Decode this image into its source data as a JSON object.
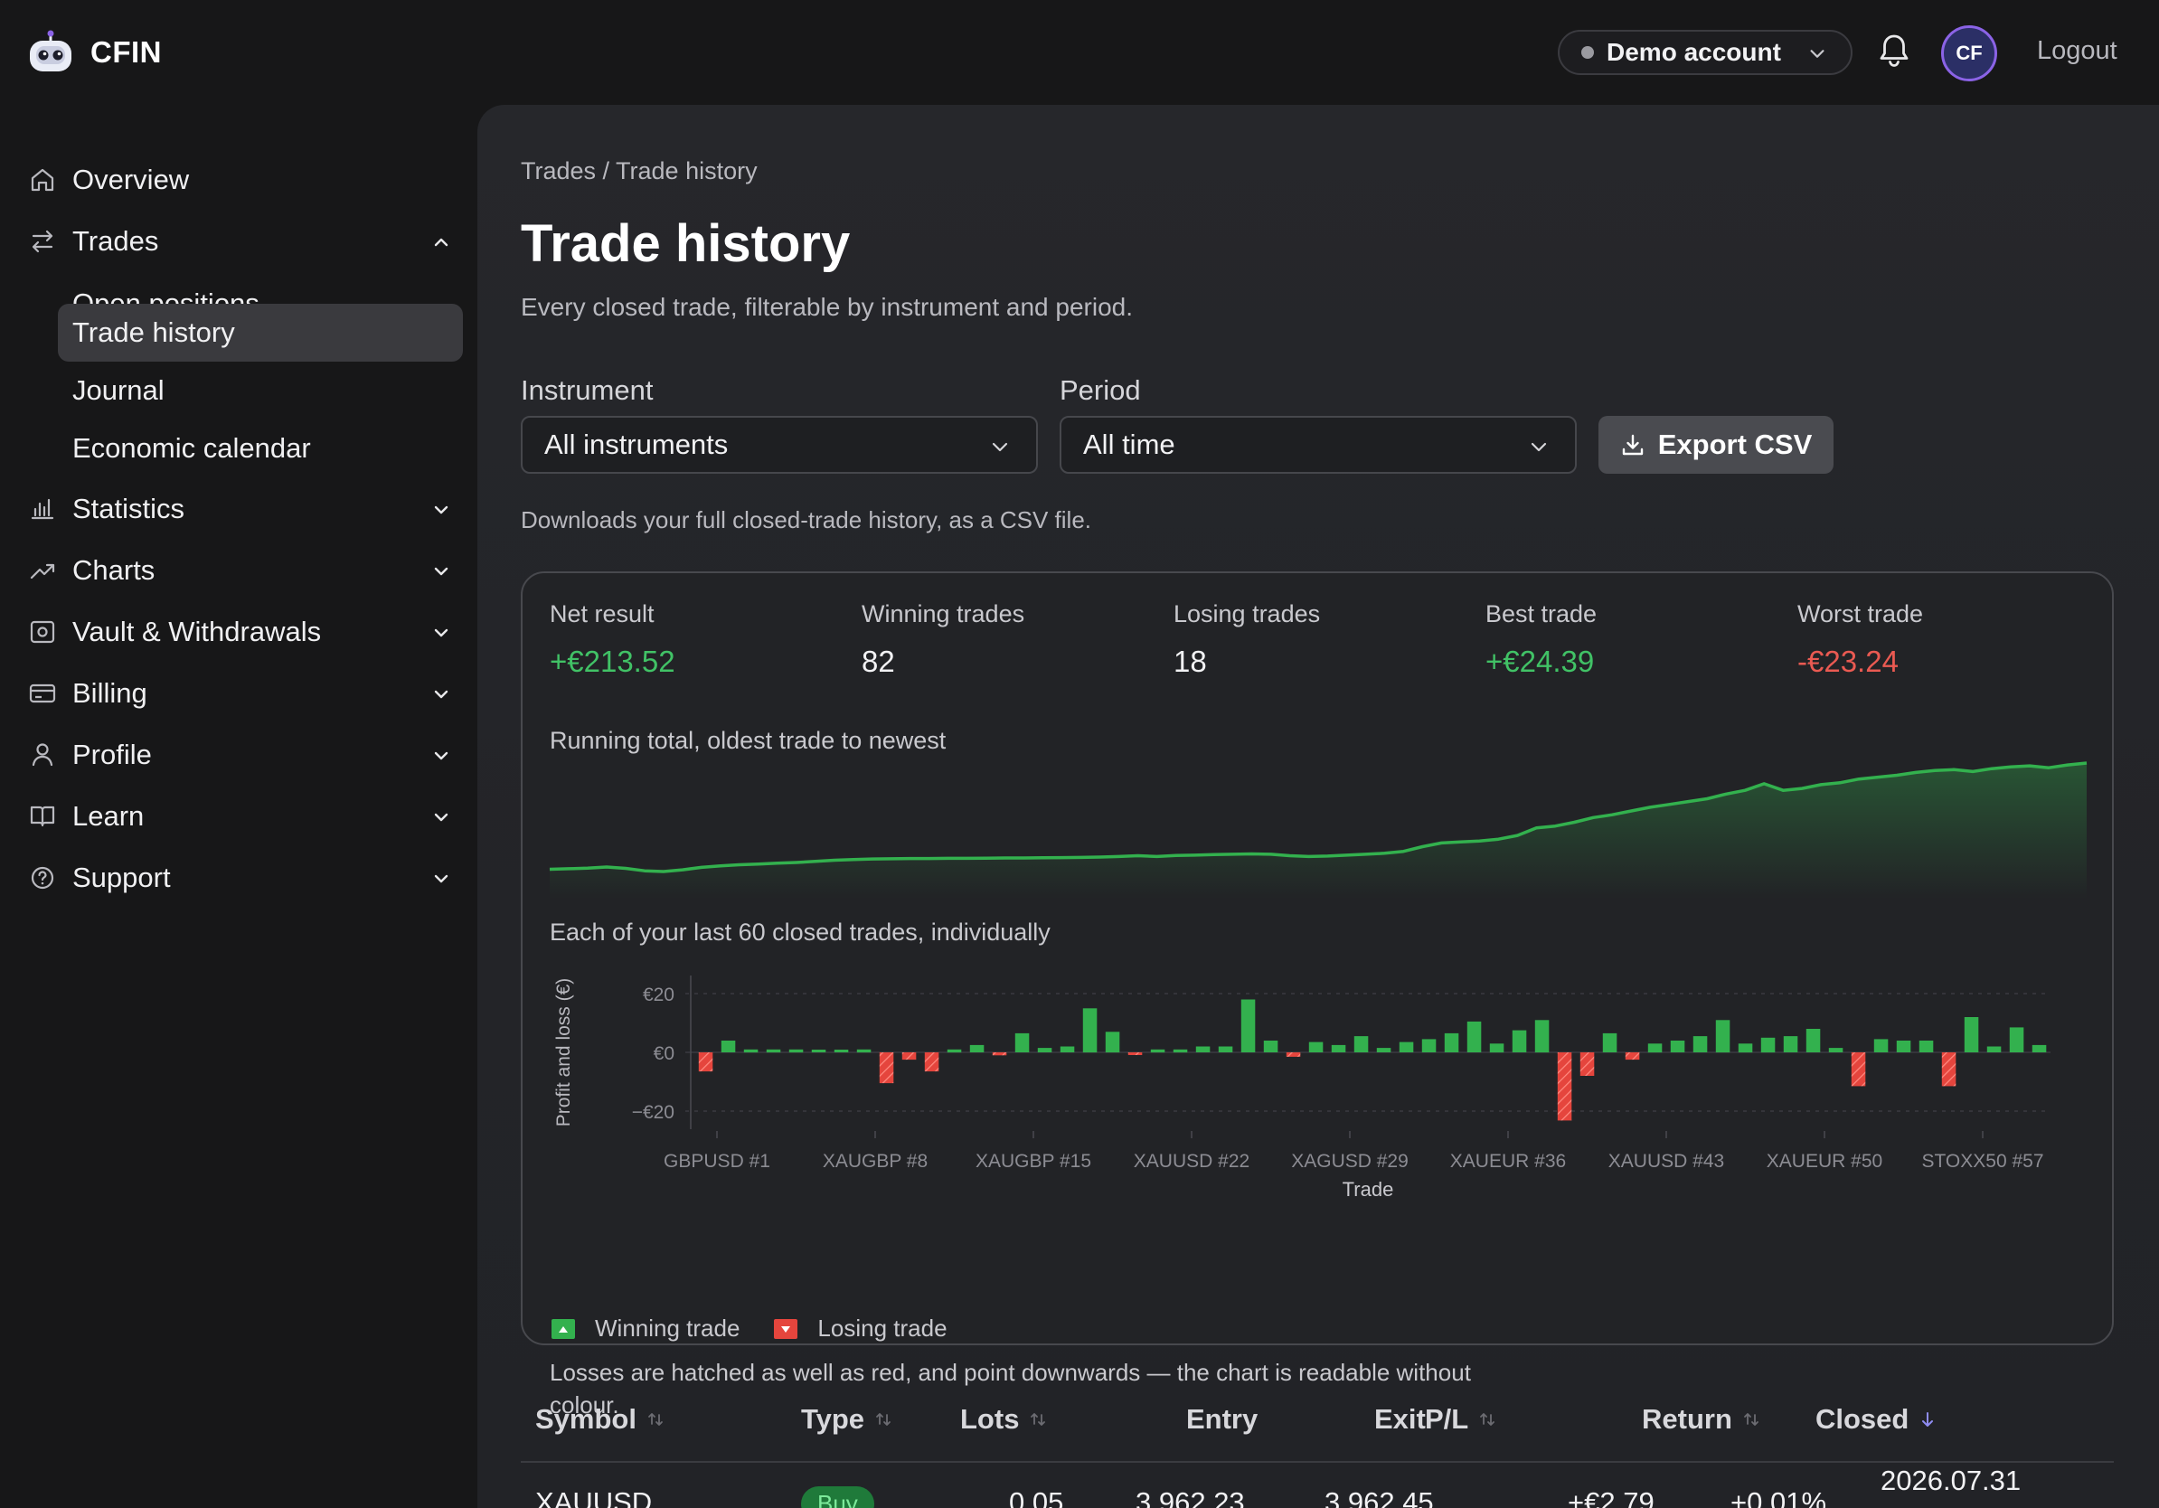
{
  "app": {
    "name": "CFIN"
  },
  "header": {
    "account_label": "Demo account",
    "avatar_initials": "CF",
    "logout_label": "Logout"
  },
  "sidebar": {
    "items": [
      {
        "label": "Overview",
        "icon": "home-icon"
      },
      {
        "label": "Trades",
        "icon": "swap-icon",
        "expanded": true,
        "children": [
          {
            "label": "Open positions"
          },
          {
            "label": "Trade history",
            "active": true
          },
          {
            "label": "Journal"
          },
          {
            "label": "Economic calendar"
          }
        ]
      },
      {
        "label": "Statistics",
        "icon": "bar-chart-icon"
      },
      {
        "label": "Charts",
        "icon": "trend-icon"
      },
      {
        "label": "Vault & Withdrawals",
        "icon": "vault-icon"
      },
      {
        "label": "Billing",
        "icon": "credit-card-icon"
      },
      {
        "label": "Profile",
        "icon": "user-icon"
      },
      {
        "label": "Learn",
        "icon": "book-icon"
      },
      {
        "label": "Support",
        "icon": "help-icon"
      }
    ]
  },
  "page": {
    "breadcrumb": "Trades / Trade history",
    "title": "Trade history",
    "subtitle": "Every closed trade, filterable by instrument and period."
  },
  "filters": {
    "instrument_label": "Instrument",
    "instrument_value": "All instruments",
    "period_label": "Period",
    "period_value": "All time",
    "export_label": "Export CSV",
    "export_helper": "Downloads your full closed-trade history, as a CSV file."
  },
  "summary": {
    "stats": [
      {
        "label": "Net result",
        "value": "+€213.52",
        "tone": "pos"
      },
      {
        "label": "Winning trades",
        "value": "82",
        "tone": "plain"
      },
      {
        "label": "Losing trades",
        "value": "18",
        "tone": "plain"
      },
      {
        "label": "Best trade",
        "value": "+€24.39",
        "tone": "pos"
      },
      {
        "label": "Worst trade",
        "value": "-€23.24",
        "tone": "neg"
      }
    ],
    "running_caption": "Running total, oldest trade to newest",
    "bars_caption": "Each of your last 60 closed trades, individually",
    "legend_win": "Winning trade",
    "legend_loss": "Losing trade",
    "note": "Losses are hatched as well as red, and point downwards — the chart is readable without colour."
  },
  "colors": {
    "win": "#33b14e",
    "loss": "#e5453d",
    "accent": "#8b63e6"
  },
  "chart_data": [
    {
      "type": "area",
      "y": [
        0,
        0.3,
        0.6,
        1.2,
        0.5,
        -0.8,
        -1.2,
        -0.3,
        1.0,
        1.8,
        2.4,
        2.8,
        3.2,
        3.6,
        4.2,
        4.8,
        5.2,
        5.5,
        5.6,
        5.7,
        5.7,
        5.8,
        5.8,
        5.9,
        6.0,
        6.0,
        6.1,
        6.2,
        6.3,
        6.5,
        6.8,
        7.2,
        6.8,
        7.3,
        7.5,
        7.8,
        8.0,
        8.2,
        8.0,
        7.2,
        6.8,
        7.0,
        7.5,
        8.0,
        8.5,
        9.5,
        12.0,
        14.0,
        14.5,
        15.0,
        16.0,
        18.0,
        22.0,
        23.0,
        25.0,
        27.5,
        29.0,
        31.0,
        33.0,
        34.5,
        36.0,
        37.5,
        40.0,
        42.0,
        45.5,
        42.0,
        43.0,
        45.0,
        46.0,
        48.0,
        49.0,
        50.0,
        51.5,
        52.5,
        53.0,
        52.0,
        53.5,
        54.5,
        55.0,
        54.0,
        55.5,
        56.5
      ]
    },
    {
      "type": "bar",
      "xlabel": "Trade",
      "ylabel": "Profit and loss (€)",
      "ylim": [
        -25,
        25
      ],
      "y_ticks": [
        "€20",
        "€0",
        "−€20"
      ],
      "x_ticks": [
        "GBPUSD #1",
        "XAUGBP #8",
        "XAUGBP #15",
        "XAUUSD #22",
        "XAGUSD #29",
        "XAUEUR #36",
        "XAUUSD #43",
        "XAUEUR #50",
        "STOXX50 #57"
      ],
      "values": [
        -6.5,
        4.0,
        1.0,
        1.0,
        1.0,
        0.5,
        0.5,
        1.0,
        -10.5,
        -2.5,
        -6.5,
        1.0,
        2.5,
        -1.0,
        6.5,
        1.5,
        2.0,
        15.0,
        7.0,
        -0.5,
        1.0,
        1.0,
        2.0,
        2.0,
        18.0,
        4.0,
        -1.5,
        3.5,
        2.5,
        5.5,
        1.5,
        3.5,
        4.5,
        6.5,
        10.5,
        3.0,
        7.5,
        11.0,
        -23.2,
        -8.0,
        6.5,
        -2.5,
        3.0,
        4.0,
        5.5,
        11.0,
        3.0,
        5.0,
        5.5,
        8.0,
        1.5,
        -11.5,
        4.5,
        4.0,
        4.0,
        -11.5,
        12.0,
        2.0,
        8.5,
        2.5
      ]
    }
  ],
  "table": {
    "columns": [
      "Symbol",
      "Type",
      "Lots",
      "Entry",
      "Exit",
      "P/L",
      "Return",
      "Closed"
    ],
    "rows": [
      {
        "symbol": "XAUUSD",
        "type": "Buy",
        "lots": "0.05",
        "entry": "3,962.23",
        "exit": "3,962.45",
        "pl": "+€2.79",
        "ret": "+0.01%",
        "closed": "2026.07.31"
      }
    ]
  }
}
